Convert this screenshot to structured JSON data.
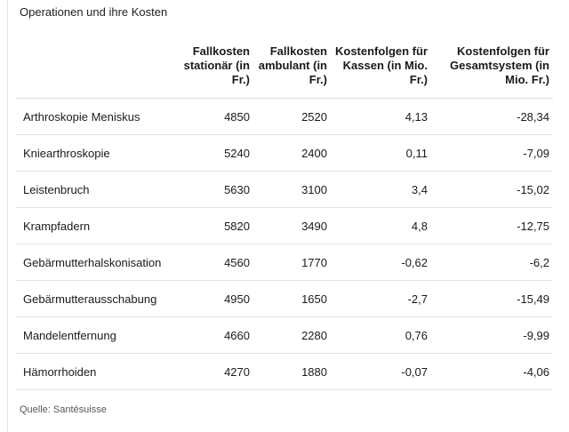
{
  "title": "Operationen und ihre Kosten",
  "table": {
    "headers": [
      "",
      "Fallkosten stationär (in Fr.)",
      "Fallkosten ambulant (in Fr.)",
      "Kostenfolgen für Kassen (in Mio. Fr.)",
      "Kostenfolgen für Gesamtsystem (in Mio. Fr.)"
    ],
    "rows": [
      [
        "Arthroskopie Meniskus",
        "4850",
        "2520",
        "4,13",
        "-28,34"
      ],
      [
        "Kniearthroskopie",
        "5240",
        "2400",
        "0,11",
        "-7,09"
      ],
      [
        "Leistenbruch",
        "5630",
        "3100",
        "3,4",
        "-15,02"
      ],
      [
        "Krampfadern",
        "5820",
        "3490",
        "4,8",
        "-12,75"
      ],
      [
        "Gebärmutterhalskonisation",
        "4560",
        "1770",
        "-0,62",
        "-6,2"
      ],
      [
        "Gebärmutterausschabung",
        "4950",
        "1650",
        "-2,7",
        "-15,49"
      ],
      [
        "Mandelentfernung",
        "4660",
        "2280",
        "0,76",
        "-9,99"
      ],
      [
        "Hämorrhoiden",
        "4270",
        "1880",
        "-0,07",
        "-4,06"
      ]
    ]
  },
  "source": "Quelle: Santésuisse"
}
